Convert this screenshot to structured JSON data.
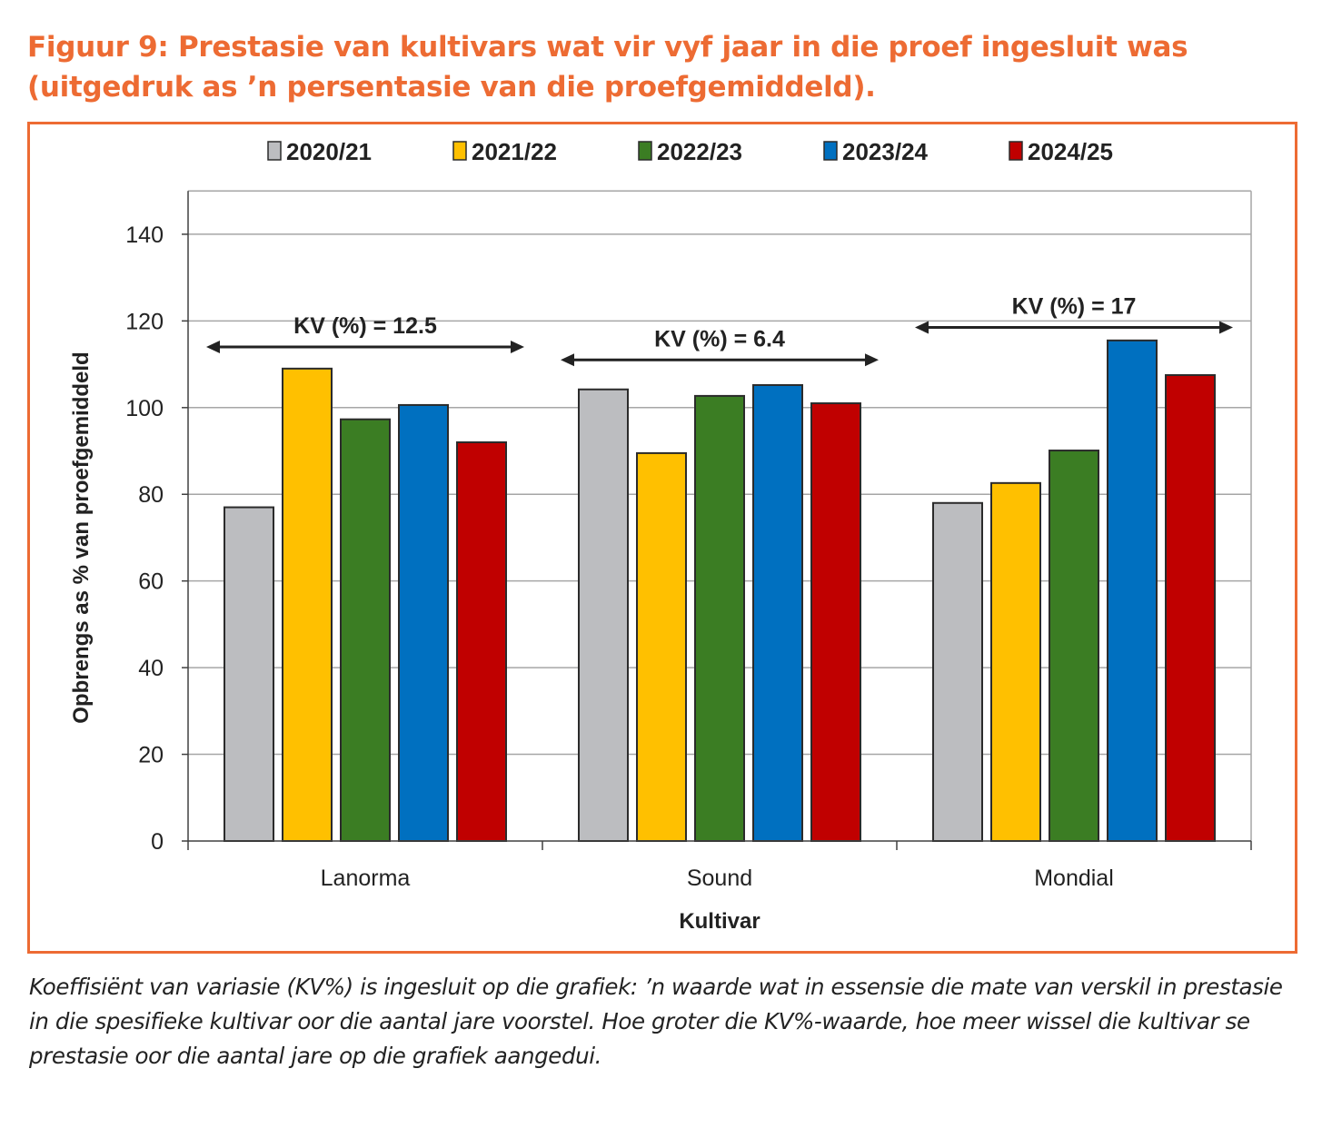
{
  "figure": {
    "title_line1": "Figuur 9: Prestasie van kultivars wat vir vyf jaar in die proef ingesluit was",
    "title_line2": "(uitgedruk as ’n persentasie van die proefgemiddeld).",
    "caption": "Koeffisiënt van variasie (KV%) is ingesluit op die grafiek: ’n waarde wat in essensie die mate van verskil in prestasie in die spesifieke kultivar oor die aantal jare voorstel. Hoe groter die KV%-waarde, hoe meer wissel die kultivar se prestasie oor die aantal jare op die grafiek aangedui.",
    "accent_color": "#ed6b33"
  },
  "chart_data": {
    "type": "bar",
    "title": "",
    "xlabel": "Kultivar",
    "ylabel": "Opbrengs as % van proefgemiddeld",
    "ylim": [
      0,
      150
    ],
    "yticks": [
      0,
      20,
      40,
      60,
      80,
      100,
      120,
      140
    ],
    "grid": true,
    "legend_position": "top",
    "categories": [
      "Lanorma",
      "Sound",
      "Mondial"
    ],
    "series": [
      {
        "name": "2020/21",
        "color": "#bcbdc0",
        "values": [
          77,
          104.2,
          78
        ]
      },
      {
        "name": "2021/22",
        "color": "#ffc000",
        "values": [
          109,
          89.5,
          82.6
        ]
      },
      {
        "name": "2022/23",
        "color": "#3b7d23",
        "values": [
          97.3,
          102.7,
          90.1
        ]
      },
      {
        "name": "2023/24",
        "color": "#0070c0",
        "values": [
          100.6,
          105.2,
          115.5
        ]
      },
      {
        "name": "2024/25",
        "color": "#c00000",
        "values": [
          92,
          101,
          107.5
        ]
      }
    ],
    "annotations": [
      {
        "category": "Lanorma",
        "text": "KV (%) = 12.5",
        "arrow_y": 114,
        "text_y": 119
      },
      {
        "category": "Sound",
        "text": "KV (%) = 6.4",
        "arrow_y": 111,
        "text_y": 116
      },
      {
        "category": "Mondial",
        "text": "KV (%) = 17",
        "arrow_y": 118.5,
        "text_y": 123.5
      }
    ]
  }
}
